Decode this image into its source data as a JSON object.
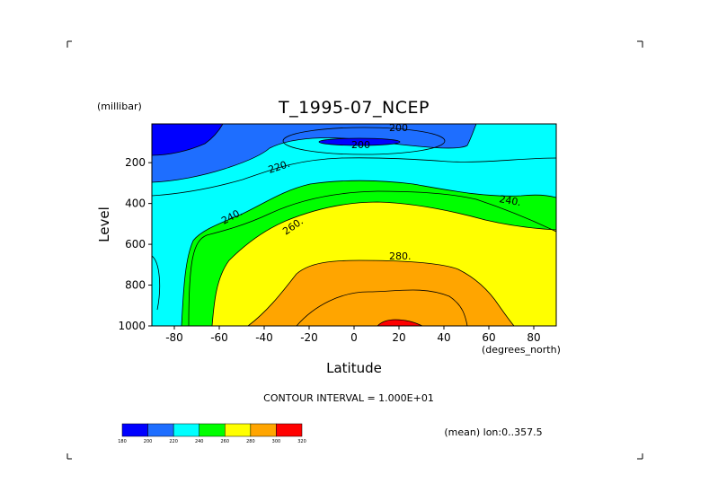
{
  "chart_data": {
    "type": "contour",
    "title": "T_1995-07_NCEP",
    "units_label": "(millibar)",
    "ylabel": "Level",
    "xlabel": "Latitude",
    "x_units": "(degrees_north)",
    "x_ticks": [
      "-80",
      "-60",
      "-40",
      "-20",
      "0",
      "20",
      "40",
      "60",
      "80"
    ],
    "y_ticks": [
      "200",
      "400",
      "600",
      "800",
      "1000"
    ],
    "xlim": [
      -90,
      90
    ],
    "ylim": [
      1000,
      10
    ],
    "contour_interval_text": "CONTOUR INTERVAL = 1.000E+01",
    "info_text": "(mean) lon:0..357.5",
    "contour_labels": [
      "200",
      "220.",
      "240.",
      "260.",
      "280.",
      "240.",
      "200"
    ],
    "colorbar": {
      "levels": [
        "180",
        "200",
        "220",
        "240",
        "260",
        "280",
        "300",
        "320"
      ],
      "colors": [
        "#0000ff",
        "#1e6eff",
        "#00ffff",
        "#00ff00",
        "#ffff00",
        "#ffa500",
        "#ff0000"
      ]
    },
    "bands": [
      {
        "range": "200-220",
        "color": "#1e6eff"
      },
      {
        "range": "220-240",
        "color": "#00ffff"
      },
      {
        "range": "240-260",
        "color": "#00ff00"
      },
      {
        "range": "260-280",
        "color": "#ffff00"
      },
      {
        "range": "280-300",
        "color": "#ffa500"
      },
      {
        "range": "300-320",
        "color": "#ff0000"
      },
      {
        "range": "180-200",
        "color": "#0000ff"
      }
    ]
  }
}
